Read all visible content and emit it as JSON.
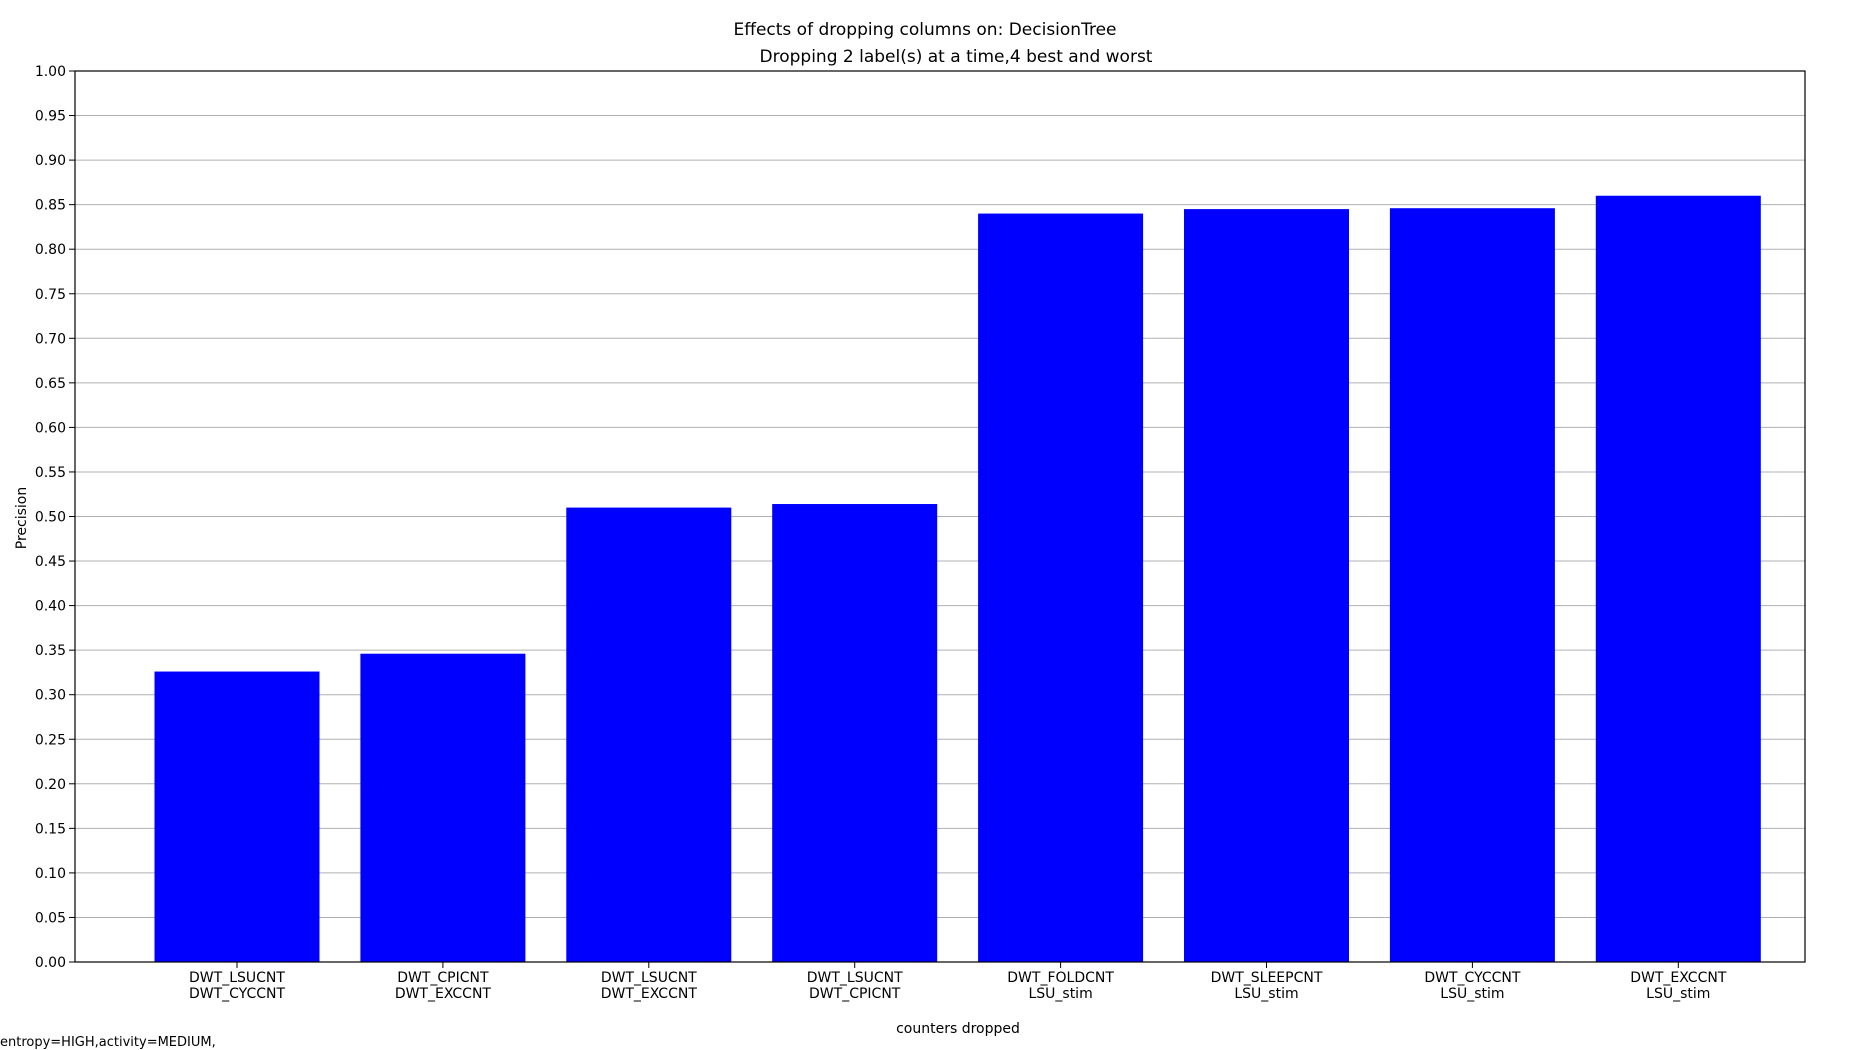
{
  "chart_data": {
    "type": "bar",
    "title": "Effects of dropping columns on: DecisionTree",
    "subtitle": "Dropping 2 label(s) at a time,4 best and worst",
    "xlabel": "counters dropped",
    "ylabel": "Precision",
    "ylim": [
      0,
      1.0
    ],
    "yticks": [
      "0.00",
      "0.05",
      "0.10",
      "0.15",
      "0.20",
      "0.25",
      "0.30",
      "0.35",
      "0.40",
      "0.45",
      "0.50",
      "0.55",
      "0.60",
      "0.65",
      "0.70",
      "0.75",
      "0.80",
      "0.85",
      "0.90",
      "0.95",
      "1.00"
    ],
    "grid": "horizontal",
    "categories": [
      [
        "DWT_LSUCNT",
        "DWT_CYCCNT"
      ],
      [
        "DWT_CPICNT",
        "DWT_EXCCNT"
      ],
      [
        "DWT_LSUCNT",
        "DWT_EXCCNT"
      ],
      [
        "DWT_LSUCNT",
        "DWT_CPICNT"
      ],
      [
        "DWT_FOLDCNT",
        "LSU_stim"
      ],
      [
        "DWT_SLEEPCNT",
        "LSU_stim"
      ],
      [
        "DWT_CYCCNT",
        "LSU_stim"
      ],
      [
        "DWT_EXCCNT",
        "LSU_stim"
      ]
    ],
    "values": [
      0.326,
      0.346,
      0.51,
      0.514,
      0.84,
      0.845,
      0.846,
      0.86
    ],
    "bar_color": "#0000ff"
  },
  "footnote": "entropy=HIGH,activity=MEDIUM,"
}
